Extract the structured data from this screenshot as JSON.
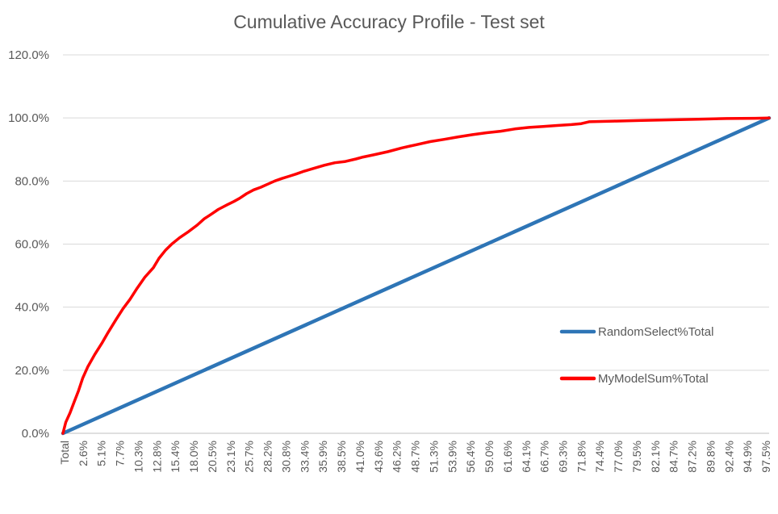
{
  "chart_data": {
    "type": "line",
    "title": "Cumulative Accuracy Profile - Test set",
    "xlabel": "",
    "ylabel": "",
    "ylim": [
      0,
      120
    ],
    "y_ticks": [
      "0.0%",
      "20.0%",
      "40.0%",
      "60.0%",
      "80.0%",
      "100.0%",
      "120.0%"
    ],
    "x_tick_labels": [
      "Total",
      "2.6%",
      "5.1%",
      "7.7%",
      "10.3%",
      "12.8%",
      "15.4%",
      "18.0%",
      "20.5%",
      "23.1%",
      "25.7%",
      "28.2%",
      "30.8%",
      "33.4%",
      "35.9%",
      "38.5%",
      "41.0%",
      "43.6%",
      "46.2%",
      "48.7%",
      "51.3%",
      "53.9%",
      "56.4%",
      "59.0%",
      "61.6%",
      "64.1%",
      "66.7%",
      "69.3%",
      "71.8%",
      "74.4%",
      "77.0%",
      "79.5%",
      "82.1%",
      "84.7%",
      "87.2%",
      "89.8%",
      "92.4%",
      "94.9%",
      "97.5%"
    ],
    "grid": "horizontal",
    "legend_position": "right",
    "series": [
      {
        "name": "RandomSelect%Total",
        "color": "#2E75B6",
        "x": [
          0,
          100
        ],
        "y": [
          0,
          100
        ]
      },
      {
        "name": "MyModelSum%Total",
        "color": "#FF0000",
        "x": [
          0,
          0.4,
          1,
          1.6,
          2.2,
          2.8,
          3.5,
          4.5,
          5.5,
          6.4,
          7.5,
          8.5,
          9.5,
          10.5,
          11.6,
          12.8,
          13.6,
          14.5,
          15.4,
          16.5,
          17.8,
          19,
          20,
          21,
          22,
          23.3,
          24.2,
          25,
          26,
          27,
          28,
          29,
          30,
          31,
          32,
          33,
          34,
          35.5,
          37,
          38.5,
          40,
          41.5,
          42.5,
          44,
          46,
          48,
          50,
          52,
          54,
          56,
          58,
          60,
          62,
          64,
          66,
          68,
          70,
          72,
          73.4,
          74.5,
          78,
          82,
          86,
          90,
          94,
          98,
          100
        ],
        "y": [
          0,
          3.5,
          6.5,
          10,
          13.5,
          17.5,
          21,
          25,
          28.5,
          32,
          36,
          39.5,
          42.5,
          46,
          49.5,
          52.5,
          55.5,
          58,
          60,
          62,
          64,
          66,
          68,
          69.5,
          71,
          72.5,
          73.5,
          74.5,
          76,
          77.2,
          78,
          79,
          80,
          80.8,
          81.5,
          82.2,
          83,
          84,
          85,
          85.8,
          86.2,
          87,
          87.6,
          88.3,
          89.3,
          90.5,
          91.5,
          92.5,
          93.2,
          94,
          94.7,
          95.3,
          95.8,
          96.5,
          97,
          97.3,
          97.6,
          97.9,
          98.2,
          98.8,
          99,
          99.2,
          99.4,
          99.6,
          99.8,
          99.9,
          100
        ]
      }
    ]
  }
}
